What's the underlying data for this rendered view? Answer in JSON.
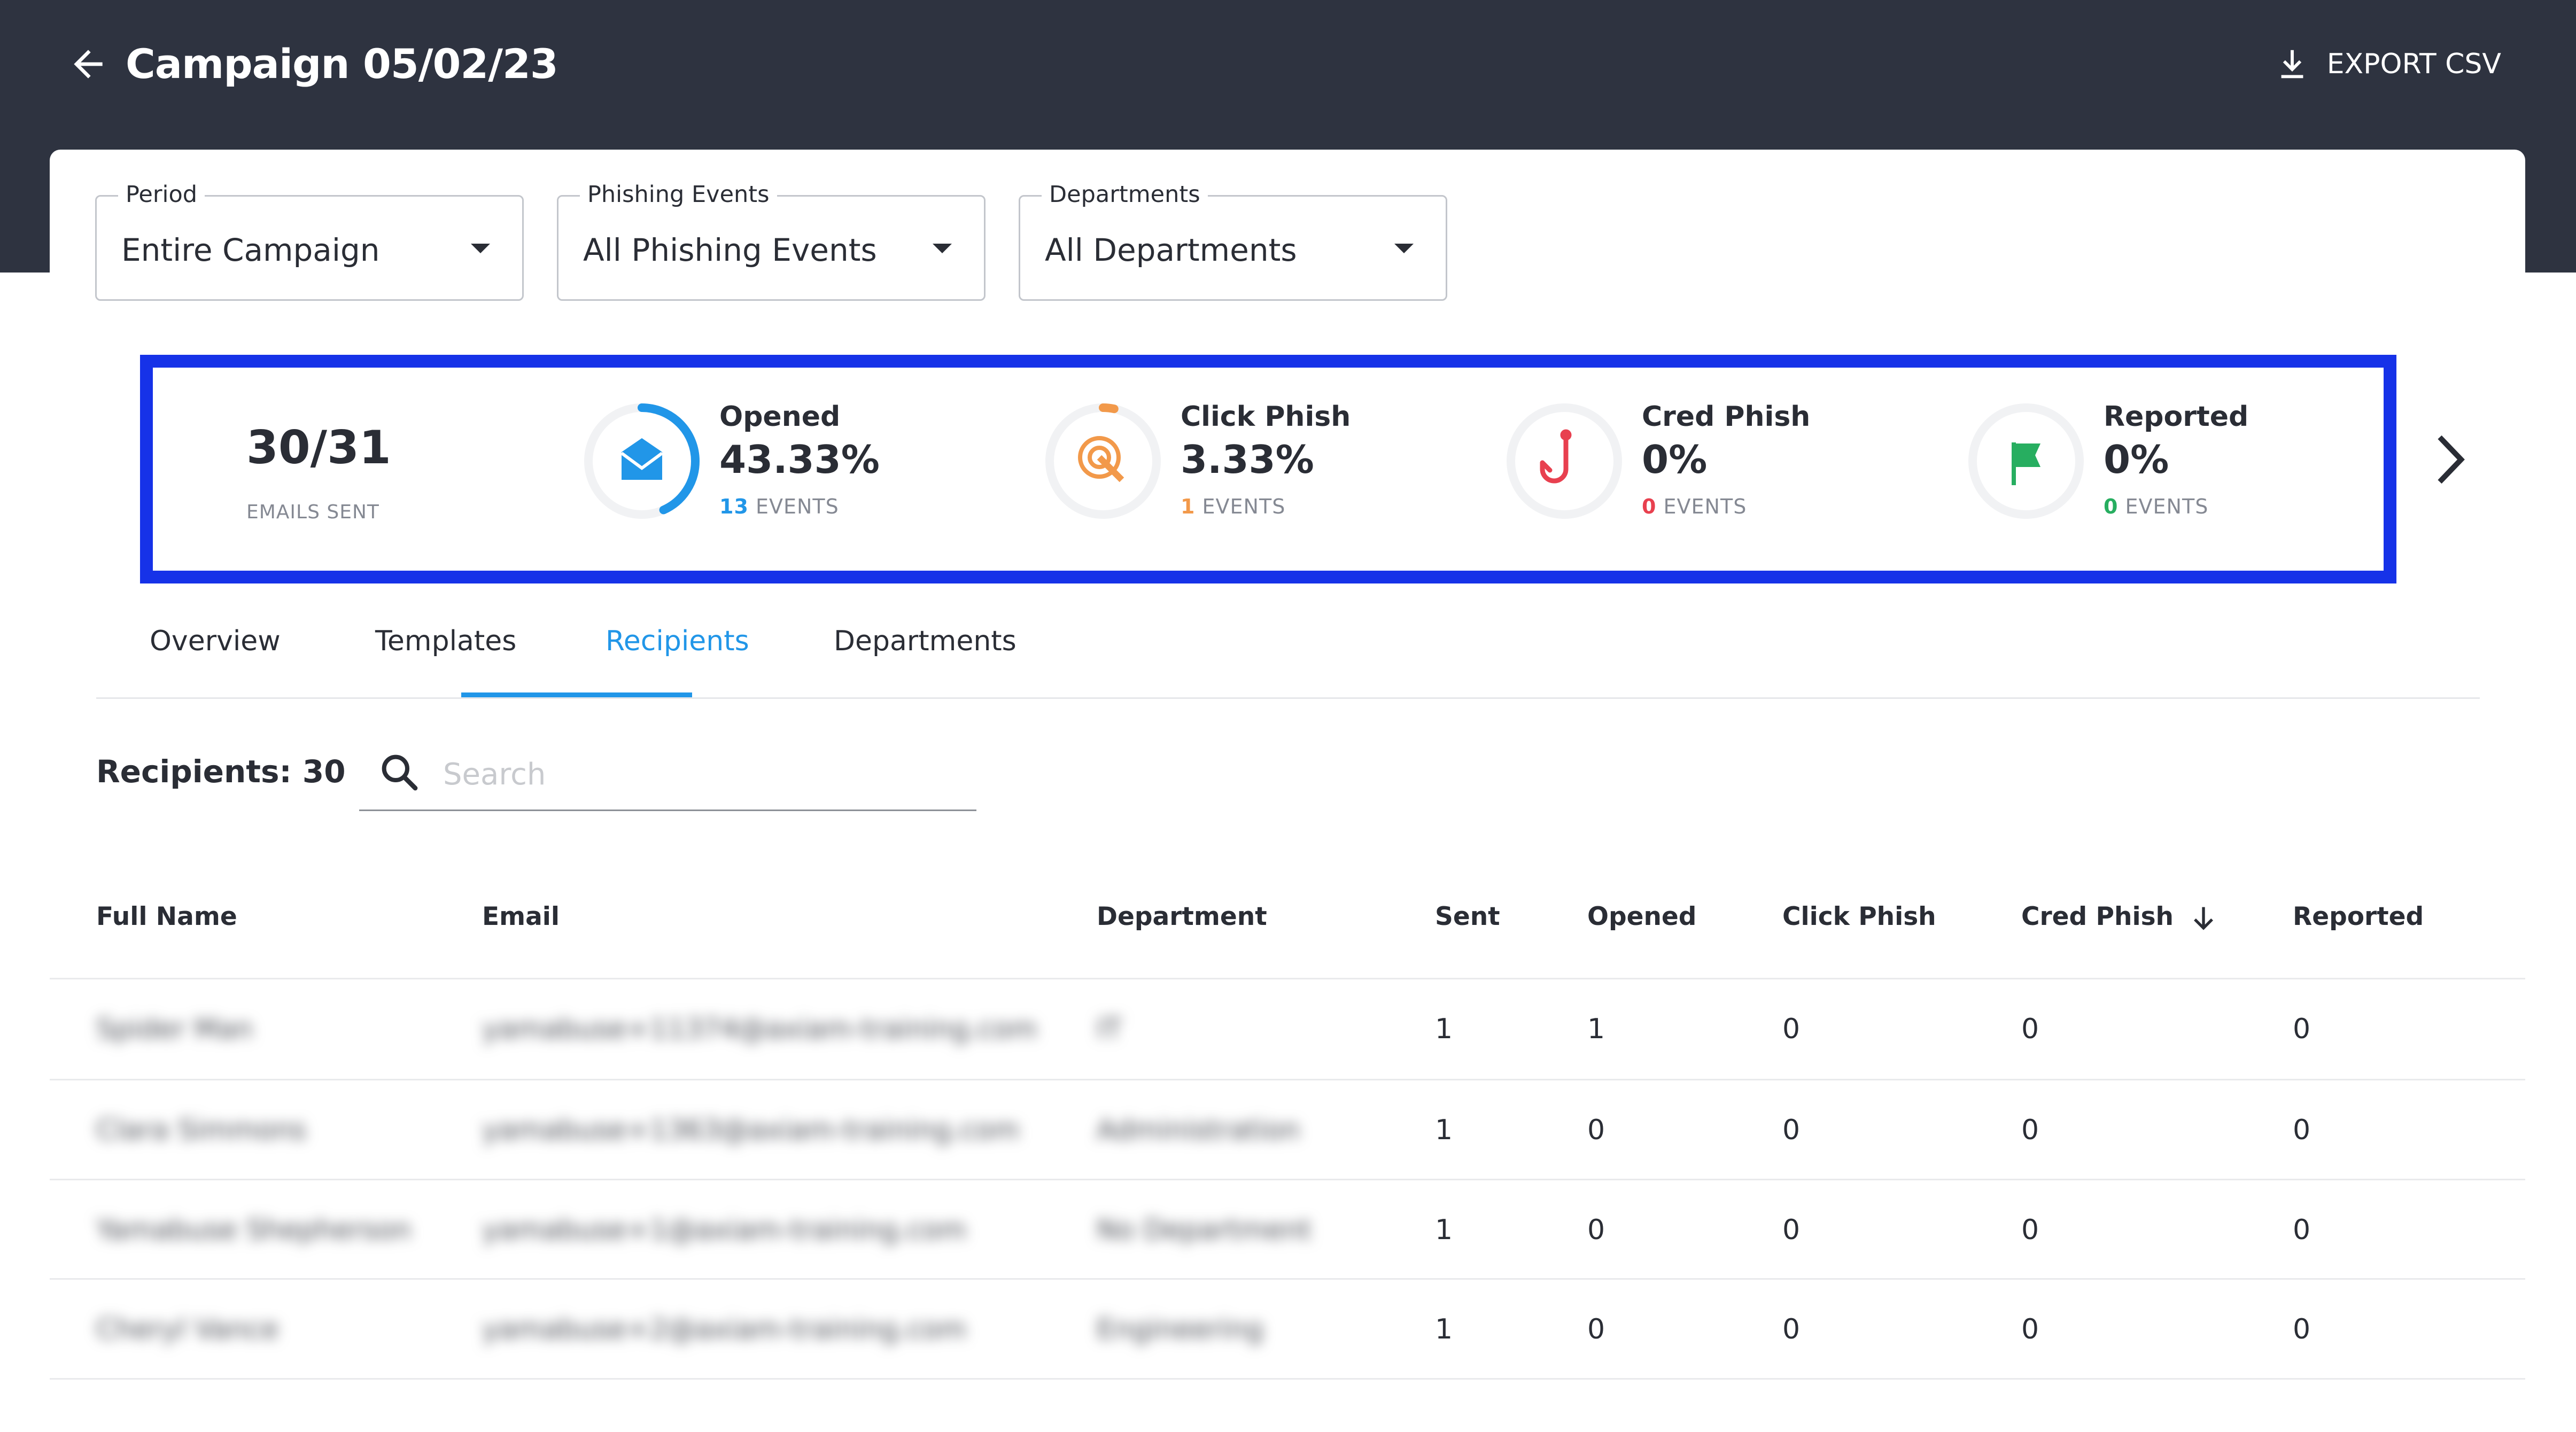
{
  "header": {
    "title": "Campaign 05/02/23",
    "export_label": "EXPORT CSV"
  },
  "filters": {
    "period": {
      "label": "Period",
      "value": "Entire Campaign"
    },
    "events": {
      "label": "Phishing Events",
      "value": "All Phishing Events"
    },
    "departments": {
      "label": "Departments",
      "value": "All Departments"
    }
  },
  "stats": {
    "sent": {
      "value": "30/31",
      "label": "EMAILS SENT"
    },
    "opened": {
      "title": "Opened",
      "pct": "43.33%",
      "count": "13",
      "unit": "EVENTS",
      "color": "#2196e8",
      "ring_fraction": 0.4333
    },
    "click": {
      "title": "Click Phish",
      "pct": "3.33%",
      "count": "1",
      "unit": "EVENTS",
      "color": "#f2994a",
      "ring_fraction": 0.0333
    },
    "cred": {
      "title": "Cred Phish",
      "pct": "0%",
      "count": "0",
      "unit": "EVENTS",
      "color": "#e8404f",
      "ring_fraction": 0
    },
    "reported": {
      "title": "Reported",
      "pct": "0%",
      "count": "0",
      "unit": "EVENTS",
      "color": "#27ae60",
      "ring_fraction": 0
    }
  },
  "tabs": [
    {
      "label": "Overview"
    },
    {
      "label": "Templates"
    },
    {
      "label": "Recipients"
    },
    {
      "label": "Departments"
    }
  ],
  "recipients": {
    "count_label": "Recipients: 30",
    "search_placeholder": "Search"
  },
  "table": {
    "headers": [
      "Full Name",
      "Email",
      "Department",
      "Sent",
      "Opened",
      "Click Phish",
      "Cred Phish",
      "Reported"
    ],
    "rows": [
      [
        "Spider Man",
        "yamabuse+11374@axiam-training.com",
        "IT",
        "1",
        "1",
        "0",
        "0",
        "0"
      ],
      [
        "Clara Simmons",
        "yamabuse+1363@axiam-training.com",
        "Administration",
        "1",
        "0",
        "0",
        "0",
        "0"
      ],
      [
        "Yamabuse Shepherson",
        "yamabuse+1@axiam-training.com",
        "No Department",
        "1",
        "0",
        "0",
        "0",
        "0"
      ],
      [
        "Cheryl Vance",
        "yamabuse+2@axiam-training.com",
        "Engineering",
        "1",
        "0",
        "0",
        "0",
        "0"
      ]
    ]
  }
}
